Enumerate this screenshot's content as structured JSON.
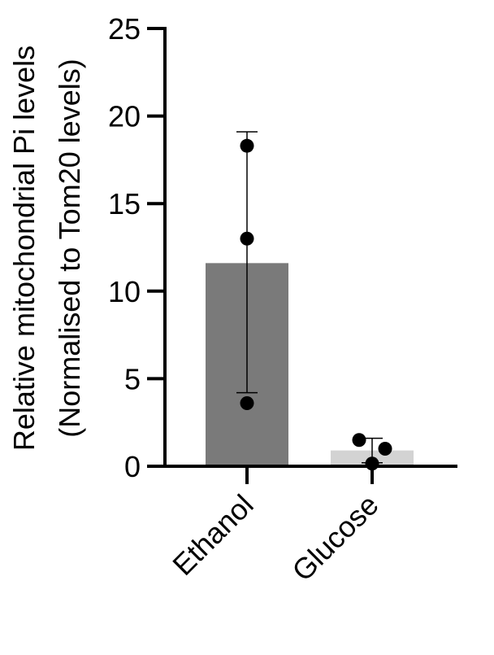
{
  "chart_data": {
    "type": "bar",
    "title": "",
    "ylabel_line1": "Relative mitochondrial Pi levels",
    "ylabel_line2": "(Normalised to Tom20 levels)",
    "xlabel": "",
    "ylim": [
      0,
      25
    ],
    "yticks": [
      0,
      5,
      10,
      15,
      20,
      25
    ],
    "categories": [
      "Ethanol",
      "Glucose"
    ],
    "values": [
      11.6,
      0.9
    ],
    "error_low": [
      4.2,
      0.2
    ],
    "error_high": [
      19.1,
      1.6
    ],
    "points": [
      [
        18.3,
        13.0,
        3.6
      ],
      [
        1.5,
        1.0,
        0.15
      ]
    ],
    "bar_colors": [
      "#7a7a7a",
      "#d3d3d3"
    ],
    "point_color": "#000000",
    "grid": false,
    "legend": "none"
  }
}
